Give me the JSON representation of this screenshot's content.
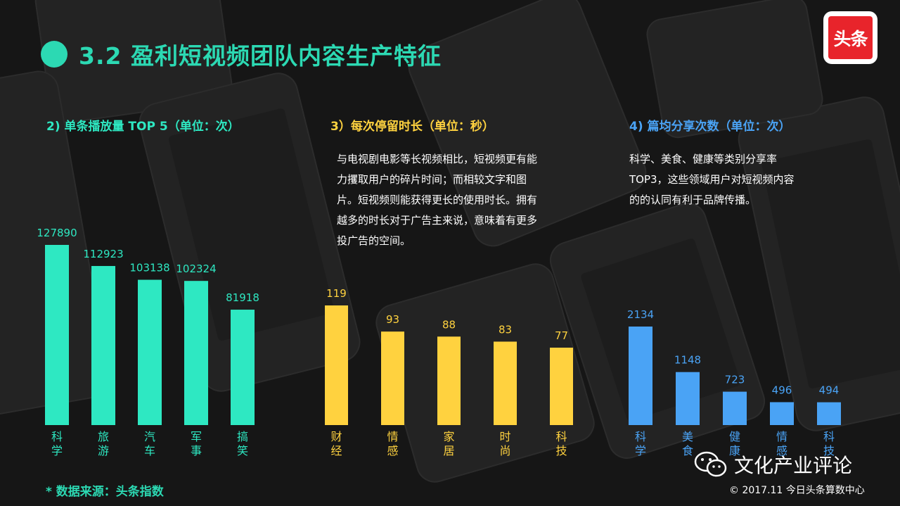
{
  "title": "3.2 盈利短视频团队内容生产特征",
  "logo_text": "头条",
  "sections": {
    "play": {
      "heading": "2) 单条播放量 TOP 5（单位：次）",
      "color": "#2ee8c2"
    },
    "stay": {
      "heading": "3）每次停留时长（单位：秒）",
      "color": "#ffd23f",
      "description": [
        "与电视剧电影等长视频相比，短视频更有能",
        "力攫取用户的碎片时间；而相较文字和图",
        "片。短视频则能获得更长的使用时长。拥有",
        "越多的时长对于广告主来说，意味着有更多",
        "投广告的空间。"
      ]
    },
    "share": {
      "heading": "4) 篇均分享次数（单位：次）",
      "color": "#4aa3f5",
      "description": [
        "科学、美食、健康等类别分享率",
        "TOP3，这些领域用户对短视频内容",
        "的的认同有利于品牌传播。"
      ]
    }
  },
  "chart_data": [
    {
      "type": "bar",
      "title": "2) 单条播放量 TOP 5（单位：次）",
      "categories": [
        "科学",
        "旅游",
        "汽车",
        "军事",
        "搞笑"
      ],
      "values": [
        127890,
        112923,
        103138,
        102324,
        81918
      ],
      "color": "#2ee8c2"
    },
    {
      "type": "bar",
      "title": "3）每次停留时长（单位：秒）",
      "categories": [
        "财经",
        "情感",
        "家居",
        "时尚",
        "科技"
      ],
      "values": [
        119,
        93,
        88,
        83,
        77
      ],
      "color": "#ffd23f"
    },
    {
      "type": "bar",
      "title": "4) 篇均分享次数（单位：次）",
      "categories": [
        "科学",
        "美食",
        "健康",
        "情感",
        "科技"
      ],
      "values": [
        2134,
        1148,
        723,
        496,
        494
      ],
      "color": "#4aa3f5"
    }
  ],
  "footer": {
    "source": "* 数据来源：头条指数",
    "watermark": "文化产业评论",
    "copyright": "© 2017.11 今日头条算数中心"
  }
}
